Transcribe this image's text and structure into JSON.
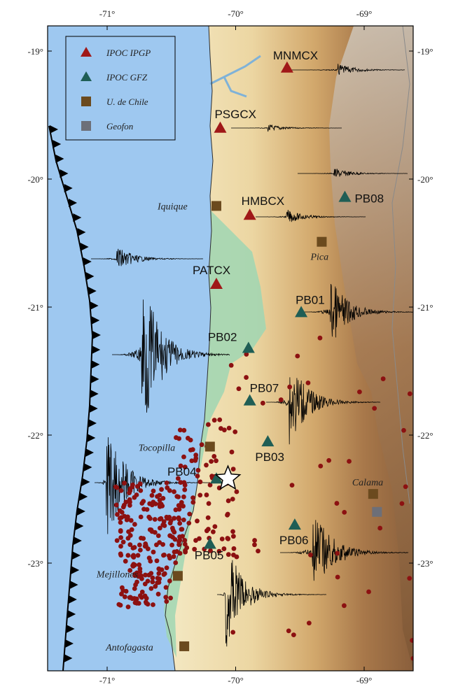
{
  "axes": {
    "x_ticks": [
      "-71°",
      "-70°",
      "-69°"
    ],
    "y_ticks": [
      "-19°",
      "-20°",
      "-21°",
      "-22°",
      "-23°"
    ]
  },
  "legend": [
    {
      "label": "IPOC IPGP",
      "marker": "triangle",
      "color": "#a01818"
    },
    {
      "label": "IPOC GFZ",
      "marker": "triangle",
      "color": "#1f5e55"
    },
    {
      "label": "U. de Chile",
      "marker": "square",
      "color": "#6b4a1e"
    },
    {
      "label": "Geofon",
      "marker": "square",
      "color": "#6d6f78"
    }
  ],
  "stations": [
    {
      "name": "MNMCX",
      "network": "IPOC IPGP",
      "lon": -69.6,
      "lat": -19.13
    },
    {
      "name": "PSGCX",
      "network": "IPOC IPGP",
      "lon": -70.12,
      "lat": -19.6
    },
    {
      "name": "HMBCX",
      "network": "IPOC IPGP",
      "lon": -69.89,
      "lat": -20.28
    },
    {
      "name": "PATCX",
      "network": "IPOC IPGP",
      "lon": -70.15,
      "lat": -20.82
    },
    {
      "name": "PB08",
      "network": "IPOC GFZ",
      "lon": -69.15,
      "lat": -20.14
    },
    {
      "name": "PB01",
      "network": "IPOC GFZ",
      "lon": -69.49,
      "lat": -21.04
    },
    {
      "name": "PB02",
      "network": "IPOC GFZ",
      "lon": -69.9,
      "lat": -21.32
    },
    {
      "name": "PB07",
      "network": "IPOC GFZ",
      "lon": -69.89,
      "lat": -21.73
    },
    {
      "name": "PB03",
      "network": "IPOC GFZ",
      "lon": -69.75,
      "lat": -22.05
    },
    {
      "name": "PB04",
      "network": "IPOC GFZ",
      "lon": -70.15,
      "lat": -22.34
    },
    {
      "name": "PB06",
      "network": "IPOC GFZ",
      "lon": -69.54,
      "lat": -22.7
    },
    {
      "name": "PB05",
      "network": "IPOC GFZ",
      "lon": -70.2,
      "lat": -22.85
    }
  ],
  "cities": [
    {
      "name": "Iquique",
      "lon": -70.15,
      "lat": -20.21
    },
    {
      "name": "Pica",
      "lon": -69.33,
      "lat": -20.49
    },
    {
      "name": "Tocopilla",
      "lon": -70.2,
      "lat": -22.09
    },
    {
      "name": "Calama",
      "lon": -68.93,
      "lat": -22.46
    },
    {
      "name": "Mejillones",
      "lon": -70.45,
      "lat": -23.1
    },
    {
      "name": "Antofagasta",
      "lon": -70.4,
      "lat": -23.65
    }
  ],
  "geofon_station": {
    "lon": -68.9,
    "lat": -22.6
  },
  "epicenter": {
    "lon": -70.06,
    "lat": -22.34
  }
}
